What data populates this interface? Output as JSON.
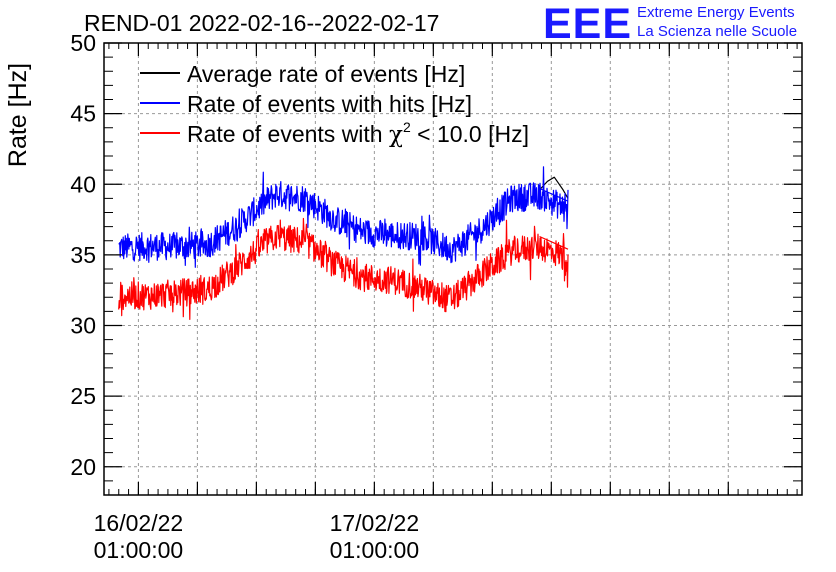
{
  "header": {
    "title": "REND-01 2022-02-16--2022-02-17",
    "logo_mark": "EEE",
    "logo_line1": "Extreme Energy Events",
    "logo_line2": "La Scienza nelle Scuole"
  },
  "chart_data": {
    "type": "line",
    "title": "REND-01 2022-02-16--2022-02-17",
    "xlabel": "",
    "ylabel": "Rate [Hz]",
    "ylim": [
      18,
      50
    ],
    "xlim_hours_from_2022_02_16_00_00": [
      -2.5,
      68.5
    ],
    "yticks": [
      20,
      25,
      30,
      35,
      40,
      45,
      50
    ],
    "xticks": [
      {
        "hour": 1,
        "label_date": "16/02/22",
        "label_time": "01:00:00"
      },
      {
        "hour": 25,
        "label_date": "17/02/22",
        "label_time": "01:00:00"
      }
    ],
    "xgrid_hours": [
      1,
      7,
      13,
      19,
      25,
      31,
      37,
      43,
      49,
      55,
      61
    ],
    "grid": true,
    "legend_position": "top-left",
    "series": [
      {
        "name": "Average rate of events [Hz]",
        "color": "#000000",
        "x": [
          41.8,
          42.6,
          43.3,
          44.2,
          44.7
        ],
        "y": [
          39.6,
          40.2,
          40.5,
          39.6,
          39.0
        ]
      },
      {
        "name": "Rate of events with hits [Hz]",
        "color": "#0000ff",
        "x": [
          -1.0,
          2.0,
          5.0,
          8.0,
          11.0,
          14.0,
          15.0,
          18.0,
          21.0,
          24.0,
          27.0,
          30.0,
          32.0,
          33.0,
          36.0,
          39.0,
          41.8,
          44.7
        ],
        "y": [
          35.5,
          35.6,
          35.6,
          35.7,
          37.0,
          38.8,
          39.3,
          39.0,
          37.5,
          36.6,
          36.4,
          36.3,
          35.6,
          35.4,
          36.9,
          39.0,
          39.2,
          38.2
        ],
        "noise": 1.0
      },
      {
        "name": "Rate of events with χ² < 10.0 [Hz]",
        "color": "#ff0000",
        "x": [
          -1.0,
          2.0,
          5.0,
          8.0,
          11.0,
          14.0,
          15.0,
          18.0,
          21.0,
          24.0,
          27.0,
          30.0,
          32.0,
          33.0,
          36.0,
          39.0,
          41.8,
          44.7
        ],
        "y": [
          32.1,
          32.1,
          32.3,
          32.5,
          34.1,
          35.9,
          36.3,
          35.9,
          34.3,
          33.4,
          33.2,
          32.6,
          31.9,
          31.9,
          33.7,
          35.3,
          35.6,
          34.8
        ],
        "noise": 1.0
      }
    ],
    "legend_labels": {
      "avg": "Average rate of events [Hz]",
      "hits": "Rate of events with hits [Hz]",
      "chi_prefix": "Rate of events with ",
      "chi_symbol": "χ",
      "chi_sup": "2",
      "chi_suffix": " < 10.0 [Hz]"
    }
  }
}
